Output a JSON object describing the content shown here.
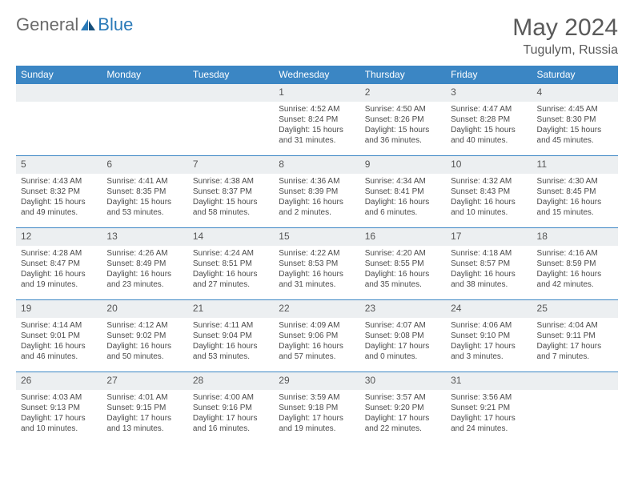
{
  "logo": {
    "text1": "General",
    "text2": "Blue"
  },
  "title": "May 2024",
  "location": "Tugulym, Russia",
  "colors": {
    "header_bg": "#3b86c4",
    "header_text": "#ffffff",
    "daynum_bg": "#eceff1",
    "border": "#3b86c4",
    "body_text": "#4a4a4a"
  },
  "dayHeaders": [
    "Sunday",
    "Monday",
    "Tuesday",
    "Wednesday",
    "Thursday",
    "Friday",
    "Saturday"
  ],
  "weeks": [
    [
      {
        "num": "",
        "lines": []
      },
      {
        "num": "",
        "lines": []
      },
      {
        "num": "",
        "lines": []
      },
      {
        "num": "1",
        "lines": [
          "Sunrise: 4:52 AM",
          "Sunset: 8:24 PM",
          "Daylight: 15 hours",
          "and 31 minutes."
        ]
      },
      {
        "num": "2",
        "lines": [
          "Sunrise: 4:50 AM",
          "Sunset: 8:26 PM",
          "Daylight: 15 hours",
          "and 36 minutes."
        ]
      },
      {
        "num": "3",
        "lines": [
          "Sunrise: 4:47 AM",
          "Sunset: 8:28 PM",
          "Daylight: 15 hours",
          "and 40 minutes."
        ]
      },
      {
        "num": "4",
        "lines": [
          "Sunrise: 4:45 AM",
          "Sunset: 8:30 PM",
          "Daylight: 15 hours",
          "and 45 minutes."
        ]
      }
    ],
    [
      {
        "num": "5",
        "lines": [
          "Sunrise: 4:43 AM",
          "Sunset: 8:32 PM",
          "Daylight: 15 hours",
          "and 49 minutes."
        ]
      },
      {
        "num": "6",
        "lines": [
          "Sunrise: 4:41 AM",
          "Sunset: 8:35 PM",
          "Daylight: 15 hours",
          "and 53 minutes."
        ]
      },
      {
        "num": "7",
        "lines": [
          "Sunrise: 4:38 AM",
          "Sunset: 8:37 PM",
          "Daylight: 15 hours",
          "and 58 minutes."
        ]
      },
      {
        "num": "8",
        "lines": [
          "Sunrise: 4:36 AM",
          "Sunset: 8:39 PM",
          "Daylight: 16 hours",
          "and 2 minutes."
        ]
      },
      {
        "num": "9",
        "lines": [
          "Sunrise: 4:34 AM",
          "Sunset: 8:41 PM",
          "Daylight: 16 hours",
          "and 6 minutes."
        ]
      },
      {
        "num": "10",
        "lines": [
          "Sunrise: 4:32 AM",
          "Sunset: 8:43 PM",
          "Daylight: 16 hours",
          "and 10 minutes."
        ]
      },
      {
        "num": "11",
        "lines": [
          "Sunrise: 4:30 AM",
          "Sunset: 8:45 PM",
          "Daylight: 16 hours",
          "and 15 minutes."
        ]
      }
    ],
    [
      {
        "num": "12",
        "lines": [
          "Sunrise: 4:28 AM",
          "Sunset: 8:47 PM",
          "Daylight: 16 hours",
          "and 19 minutes."
        ]
      },
      {
        "num": "13",
        "lines": [
          "Sunrise: 4:26 AM",
          "Sunset: 8:49 PM",
          "Daylight: 16 hours",
          "and 23 minutes."
        ]
      },
      {
        "num": "14",
        "lines": [
          "Sunrise: 4:24 AM",
          "Sunset: 8:51 PM",
          "Daylight: 16 hours",
          "and 27 minutes."
        ]
      },
      {
        "num": "15",
        "lines": [
          "Sunrise: 4:22 AM",
          "Sunset: 8:53 PM",
          "Daylight: 16 hours",
          "and 31 minutes."
        ]
      },
      {
        "num": "16",
        "lines": [
          "Sunrise: 4:20 AM",
          "Sunset: 8:55 PM",
          "Daylight: 16 hours",
          "and 35 minutes."
        ]
      },
      {
        "num": "17",
        "lines": [
          "Sunrise: 4:18 AM",
          "Sunset: 8:57 PM",
          "Daylight: 16 hours",
          "and 38 minutes."
        ]
      },
      {
        "num": "18",
        "lines": [
          "Sunrise: 4:16 AM",
          "Sunset: 8:59 PM",
          "Daylight: 16 hours",
          "and 42 minutes."
        ]
      }
    ],
    [
      {
        "num": "19",
        "lines": [
          "Sunrise: 4:14 AM",
          "Sunset: 9:01 PM",
          "Daylight: 16 hours",
          "and 46 minutes."
        ]
      },
      {
        "num": "20",
        "lines": [
          "Sunrise: 4:12 AM",
          "Sunset: 9:02 PM",
          "Daylight: 16 hours",
          "and 50 minutes."
        ]
      },
      {
        "num": "21",
        "lines": [
          "Sunrise: 4:11 AM",
          "Sunset: 9:04 PM",
          "Daylight: 16 hours",
          "and 53 minutes."
        ]
      },
      {
        "num": "22",
        "lines": [
          "Sunrise: 4:09 AM",
          "Sunset: 9:06 PM",
          "Daylight: 16 hours",
          "and 57 minutes."
        ]
      },
      {
        "num": "23",
        "lines": [
          "Sunrise: 4:07 AM",
          "Sunset: 9:08 PM",
          "Daylight: 17 hours",
          "and 0 minutes."
        ]
      },
      {
        "num": "24",
        "lines": [
          "Sunrise: 4:06 AM",
          "Sunset: 9:10 PM",
          "Daylight: 17 hours",
          "and 3 minutes."
        ]
      },
      {
        "num": "25",
        "lines": [
          "Sunrise: 4:04 AM",
          "Sunset: 9:11 PM",
          "Daylight: 17 hours",
          "and 7 minutes."
        ]
      }
    ],
    [
      {
        "num": "26",
        "lines": [
          "Sunrise: 4:03 AM",
          "Sunset: 9:13 PM",
          "Daylight: 17 hours",
          "and 10 minutes."
        ]
      },
      {
        "num": "27",
        "lines": [
          "Sunrise: 4:01 AM",
          "Sunset: 9:15 PM",
          "Daylight: 17 hours",
          "and 13 minutes."
        ]
      },
      {
        "num": "28",
        "lines": [
          "Sunrise: 4:00 AM",
          "Sunset: 9:16 PM",
          "Daylight: 17 hours",
          "and 16 minutes."
        ]
      },
      {
        "num": "29",
        "lines": [
          "Sunrise: 3:59 AM",
          "Sunset: 9:18 PM",
          "Daylight: 17 hours",
          "and 19 minutes."
        ]
      },
      {
        "num": "30",
        "lines": [
          "Sunrise: 3:57 AM",
          "Sunset: 9:20 PM",
          "Daylight: 17 hours",
          "and 22 minutes."
        ]
      },
      {
        "num": "31",
        "lines": [
          "Sunrise: 3:56 AM",
          "Sunset: 9:21 PM",
          "Daylight: 17 hours",
          "and 24 minutes."
        ]
      },
      {
        "num": "",
        "lines": []
      }
    ]
  ]
}
